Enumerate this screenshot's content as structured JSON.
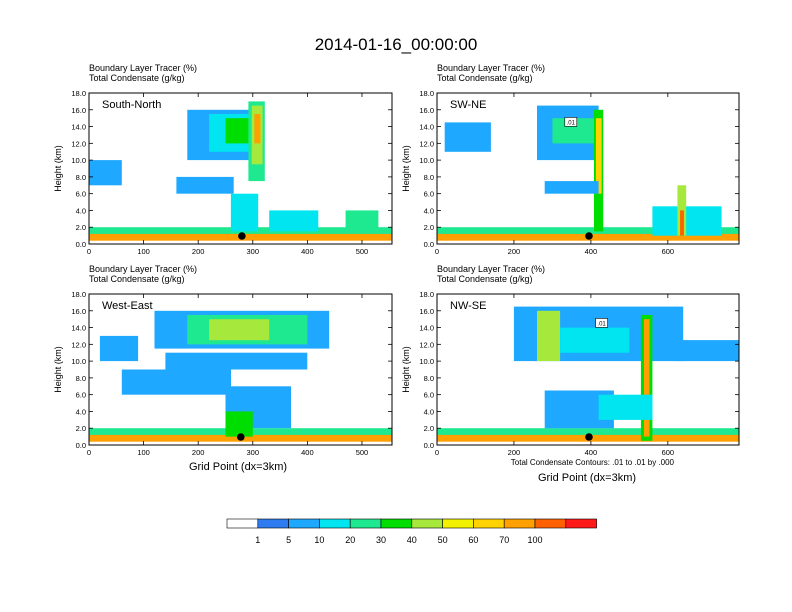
{
  "title": "2014-01-16_00:00:00",
  "panel_subtitle_1": "Boundary Layer Tracer   (%)",
  "panel_subtitle_2": "Total Condensate   (g/kg)",
  "ylabel": "Height (km)",
  "xlabel": "Grid Point (dx=3km)",
  "contour_note": "Total Condensate Contours: .01 to .01 by .000",
  "colors": {
    "levels": [
      "#ffffff",
      "#2f7cf0",
      "#1ea8ff",
      "#00e5f0",
      "#1ee890",
      "#00dd00",
      "#a6e83c",
      "#f2f200",
      "#ffd200",
      "#ffa000",
      "#ff6000",
      "#ff1a1a"
    ],
    "contour": "#000000"
  },
  "chart_data": [
    {
      "type": "heatmap",
      "name": "South-North",
      "xlim": [
        0,
        555
      ],
      "ylim": [
        0,
        18
      ],
      "xticks": [
        0,
        100,
        200,
        300,
        400,
        500
      ],
      "yticks": [
        "0.0",
        "2.0",
        "4.0",
        "6.0",
        "8.0",
        "10.0",
        "12.0",
        "14.0",
        "16.0",
        "18.0"
      ],
      "site_marker_x": 280,
      "contour_label": null,
      "cells": [
        {
          "x": [
            0,
            555
          ],
          "y": [
            0.4,
            1.4
          ],
          "v": 9
        },
        {
          "x": [
            0,
            555
          ],
          "y": [
            1.2,
            2.0
          ],
          "v": 4
        },
        {
          "x": [
            180,
            300
          ],
          "y": [
            10,
            16
          ],
          "v": 2
        },
        {
          "x": [
            220,
            300
          ],
          "y": [
            11,
            15.5
          ],
          "v": 3
        },
        {
          "x": [
            250,
            300
          ],
          "y": [
            12,
            15
          ],
          "v": 5
        },
        {
          "x": [
            292,
            322
          ],
          "y": [
            7.5,
            17
          ],
          "v": 4
        },
        {
          "x": [
            298,
            318
          ],
          "y": [
            9.5,
            16.5
          ],
          "v": 6
        },
        {
          "x": [
            303,
            314
          ],
          "y": [
            12,
            15.5
          ],
          "v": 9
        },
        {
          "x": [
            0,
            60
          ],
          "y": [
            7,
            10
          ],
          "v": 2
        },
        {
          "x": [
            160,
            265
          ],
          "y": [
            6,
            8
          ],
          "v": 2
        },
        {
          "x": [
            260,
            310
          ],
          "y": [
            1.5,
            6
          ],
          "v": 3
        },
        {
          "x": [
            330,
            420
          ],
          "y": [
            1.5,
            4
          ],
          "v": 3
        },
        {
          "x": [
            470,
            530
          ],
          "y": [
            1.5,
            4
          ],
          "v": 4
        }
      ]
    },
    {
      "type": "heatmap",
      "name": "SW-NE",
      "xlim": [
        0,
        785
      ],
      "ylim": [
        0,
        18
      ],
      "xticks": [
        0,
        200,
        400,
        600
      ],
      "yticks": [
        "0.0",
        "2.0",
        "4.0",
        "6.0",
        "8.0",
        "10.0",
        "12.0",
        "14.0",
        "16.0",
        "18.0"
      ],
      "site_marker_x": 395,
      "contour_label": ".01",
      "cells": [
        {
          "x": [
            0,
            785
          ],
          "y": [
            0.4,
            1.4
          ],
          "v": 9
        },
        {
          "x": [
            0,
            785
          ],
          "y": [
            1.2,
            2.0
          ],
          "v": 4
        },
        {
          "x": [
            20,
            140
          ],
          "y": [
            11,
            14.5
          ],
          "v": 2
        },
        {
          "x": [
            260,
            420
          ],
          "y": [
            10,
            16.5
          ],
          "v": 2
        },
        {
          "x": [
            300,
            410
          ],
          "y": [
            12,
            15
          ],
          "v": 4
        },
        {
          "x": [
            408,
            432
          ],
          "y": [
            1.5,
            16
          ],
          "v": 5
        },
        {
          "x": [
            413,
            428
          ],
          "y": [
            6,
            15
          ],
          "v": 8
        },
        {
          "x": [
            280,
            420
          ],
          "y": [
            6,
            7.5
          ],
          "v": 2
        },
        {
          "x": [
            560,
            740
          ],
          "y": [
            1,
            4.5
          ],
          "v": 3
        },
        {
          "x": [
            625,
            648
          ],
          "y": [
            1,
            7
          ],
          "v": 6
        },
        {
          "x": [
            632,
            642
          ],
          "y": [
            1,
            4
          ],
          "v": 10
        }
      ]
    },
    {
      "type": "heatmap",
      "name": "West-East",
      "xlim": [
        0,
        555
      ],
      "ylim": [
        0,
        18
      ],
      "xticks": [
        0,
        100,
        200,
        300,
        400,
        500
      ],
      "yticks": [
        "0.0",
        "2.0",
        "4.0",
        "6.0",
        "8.0",
        "10.0",
        "12.0",
        "14.0",
        "16.0",
        "18.0"
      ],
      "site_marker_x": 278,
      "contour_label": null,
      "cells": [
        {
          "x": [
            0,
            555
          ],
          "y": [
            0.4,
            1.4
          ],
          "v": 9
        },
        {
          "x": [
            0,
            555
          ],
          "y": [
            1.2,
            2.0
          ],
          "v": 4
        },
        {
          "x": [
            120,
            440
          ],
          "y": [
            11.5,
            16
          ],
          "v": 2
        },
        {
          "x": [
            180,
            400
          ],
          "y": [
            12,
            15.5
          ],
          "v": 4
        },
        {
          "x": [
            220,
            330
          ],
          "y": [
            12.5,
            15
          ],
          "v": 6
        },
        {
          "x": [
            20,
            90
          ],
          "y": [
            10,
            13
          ],
          "v": 2
        },
        {
          "x": [
            140,
            400
          ],
          "y": [
            9,
            11
          ],
          "v": 2
        },
        {
          "x": [
            60,
            260
          ],
          "y": [
            6,
            9
          ],
          "v": 2
        },
        {
          "x": [
            250,
            370
          ],
          "y": [
            2,
            7
          ],
          "v": 2
        },
        {
          "x": [
            250,
            300
          ],
          "y": [
            1,
            4
          ],
          "v": 5
        }
      ]
    },
    {
      "type": "heatmap",
      "name": "NW-SE",
      "xlim": [
        0,
        785
      ],
      "ylim": [
        0,
        18
      ],
      "xticks": [
        0,
        200,
        400,
        600
      ],
      "yticks": [
        "0.0",
        "2.0",
        "4.0",
        "6.0",
        "8.0",
        "10.0",
        "12.0",
        "14.0",
        "16.0",
        "18.0"
      ],
      "site_marker_x": 395,
      "contour_label": ".01",
      "cells": [
        {
          "x": [
            0,
            785
          ],
          "y": [
            0.4,
            1.4
          ],
          "v": 9
        },
        {
          "x": [
            0,
            785
          ],
          "y": [
            1.2,
            2.0
          ],
          "v": 4
        },
        {
          "x": [
            200,
            640
          ],
          "y": [
            10,
            16.5
          ],
          "v": 2
        },
        {
          "x": [
            260,
            320
          ],
          "y": [
            10,
            16
          ],
          "v": 6
        },
        {
          "x": [
            320,
            500
          ],
          "y": [
            11,
            14
          ],
          "v": 3
        },
        {
          "x": [
            530,
            560
          ],
          "y": [
            0.5,
            15.5
          ],
          "v": 5
        },
        {
          "x": [
            538,
            552
          ],
          "y": [
            1,
            15
          ],
          "v": 9
        },
        {
          "x": [
            620,
            785
          ],
          "y": [
            10,
            12.5
          ],
          "v": 2
        },
        {
          "x": [
            280,
            460
          ],
          "y": [
            2,
            6.5
          ],
          "v": 2
        },
        {
          "x": [
            420,
            560
          ],
          "y": [
            3,
            6
          ],
          "v": 3
        }
      ]
    }
  ],
  "colorbar": {
    "tick_labels": [
      "1",
      "5",
      "10",
      "20",
      "30",
      "40",
      "50",
      "60",
      "70",
      "100"
    ]
  }
}
